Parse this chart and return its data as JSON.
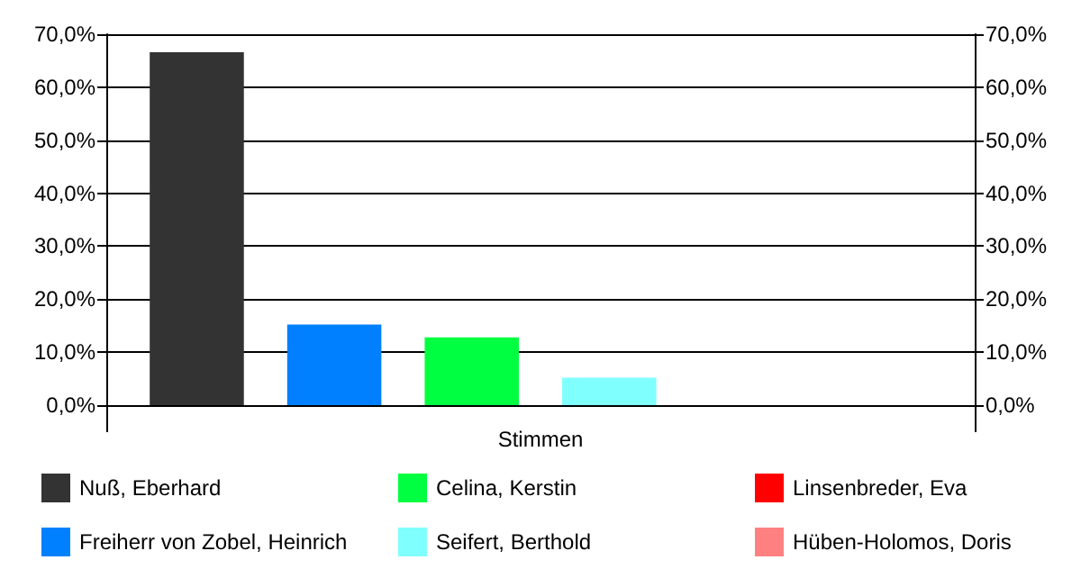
{
  "chart_data": {
    "type": "bar",
    "xlabel": "Stimmen",
    "categories": [
      null
    ],
    "series": [
      {
        "name": "Nuß, Eberhard",
        "color": "#333333",
        "values": [
          66.6
        ]
      },
      {
        "name": "Freiherr von Zobel, Heinrich",
        "color": "#0080ff",
        "values": [
          15.2
        ]
      },
      {
        "name": "Celina, Kerstin",
        "color": "#00ff40",
        "values": [
          12.8
        ]
      },
      {
        "name": "Seifert, Berthold",
        "color": "#80ffff",
        "values": [
          5.2
        ]
      },
      {
        "name": "Linsenbreder, Eva",
        "color": "#ff0000",
        "values": [
          0
        ]
      },
      {
        "name": "Hüben-Holomos, Doris",
        "color": "#ff8080",
        "values": [
          0
        ]
      }
    ],
    "ylim": [
      0,
      70
    ],
    "yticks": [
      {
        "value": 0,
        "label": "0,0%"
      },
      {
        "value": 10,
        "label": "10,0%"
      },
      {
        "value": 20,
        "label": "20,0%"
      },
      {
        "value": 30,
        "label": "30,0%"
      },
      {
        "value": 40,
        "label": "40,0%"
      },
      {
        "value": 50,
        "label": "50,0%"
      },
      {
        "value": 60,
        "label": "60,0%"
      },
      {
        "value": 70,
        "label": "70,0%"
      }
    ],
    "y2lim": [
      0,
      70
    ],
    "y2ticks": [
      {
        "value": 0,
        "label": "0,0%"
      },
      {
        "value": 10,
        "label": "10,0%"
      },
      {
        "value": 20,
        "label": "20,0%"
      },
      {
        "value": 30,
        "label": "30,0%"
      },
      {
        "value": 40,
        "label": "40,0%"
      },
      {
        "value": 50,
        "label": "50,0%"
      },
      {
        "value": 60,
        "label": "60,0%"
      },
      {
        "value": 70,
        "label": "70,0%"
      }
    ],
    "grid": "y",
    "legend": "bottom"
  }
}
